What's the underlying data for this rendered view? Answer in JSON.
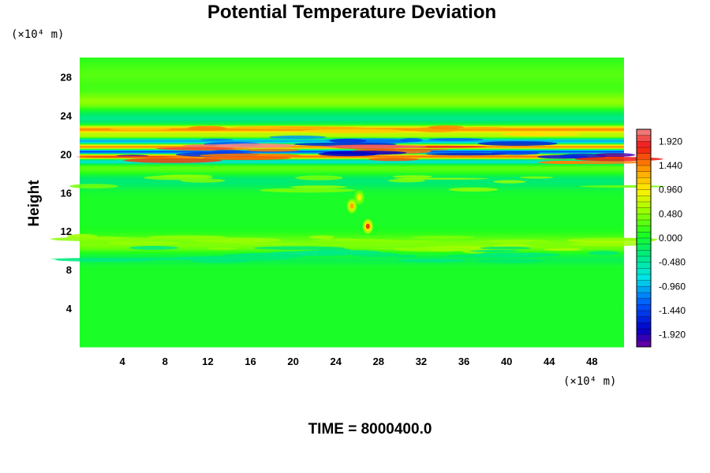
{
  "chart_data": {
    "type": "heatmap",
    "title": "Potential Temperature Deviation",
    "ylabel": "Height",
    "y_unit_label": "(×10⁴ m)",
    "x_unit_label": "(×10⁴ m)",
    "footer": "TIME = 8000400.0",
    "xlim": [
      0,
      51
    ],
    "ylim": [
      0,
      30
    ],
    "x_ticks": [
      4,
      8,
      12,
      16,
      20,
      24,
      28,
      32,
      36,
      40,
      44,
      48
    ],
    "y_ticks": [
      4,
      8,
      12,
      16,
      20,
      24,
      28
    ],
    "colorbar": {
      "min": -2.16,
      "max": 2.16,
      "levels": 36,
      "tick_values": [
        1.92,
        1.44,
        0.96,
        0.48,
        0.0,
        -0.48,
        -0.96,
        -1.44,
        -1.92
      ],
      "tick_labels": [
        "1.920",
        "1.440",
        "0.960",
        "0.480",
        "0.000",
        "-0.480",
        "-0.960",
        "-1.440",
        "-1.920"
      ]
    },
    "background_value": 0.05,
    "bands": [
      {
        "y_center": 28.3,
        "half_width": 1.6,
        "value": 0.28,
        "desc": "upper light-green layer"
      },
      {
        "y_center": 25.2,
        "half_width": 1.2,
        "value": 0.55,
        "desc": "yellowish layer"
      },
      {
        "y_center": 24.0,
        "half_width": 0.8,
        "value": -0.6,
        "desc": "cyan layer"
      },
      {
        "y_center": 22.6,
        "half_width": 0.35,
        "value": 1.5,
        "desc": "red/orange layer"
      },
      {
        "y_center": 21.9,
        "half_width": 0.3,
        "value": 0.7,
        "desc": "yellow layer"
      },
      {
        "y_center": 21.3,
        "half_width": 0.35,
        "value": -1.3,
        "desc": "blue layer"
      },
      {
        "y_center": 20.8,
        "half_width": 0.35,
        "value": 2.0,
        "desc": "pink layer"
      },
      {
        "y_center": 20.3,
        "half_width": 0.3,
        "value": -2.0,
        "desc": "purple layer"
      },
      {
        "y_center": 19.8,
        "half_width": 0.3,
        "value": 1.9,
        "desc": "pink layer"
      },
      {
        "y_center": 19.3,
        "half_width": 0.3,
        "value": -0.9,
        "desc": "blue/cyan layer"
      },
      {
        "y_center": 18.4,
        "half_width": 0.6,
        "value": 0.4,
        "desc": "yellow-green layer"
      },
      {
        "y_center": 17.3,
        "half_width": 0.9,
        "value": -0.3,
        "desc": "teal layer"
      },
      {
        "y_center": 10.6,
        "half_width": 1.0,
        "value": 0.45,
        "desc": "yellow-green noisy layer"
      },
      {
        "y_center": 9.3,
        "half_width": 0.7,
        "value": -0.2,
        "desc": "teal noisy layer"
      }
    ],
    "blobs": [
      {
        "x": 27.0,
        "y": 12.5,
        "value": 1.7
      },
      {
        "x": 25.5,
        "y": 14.6,
        "value": 1.3
      },
      {
        "x": 26.2,
        "y": 15.5,
        "value": 0.9
      }
    ]
  }
}
